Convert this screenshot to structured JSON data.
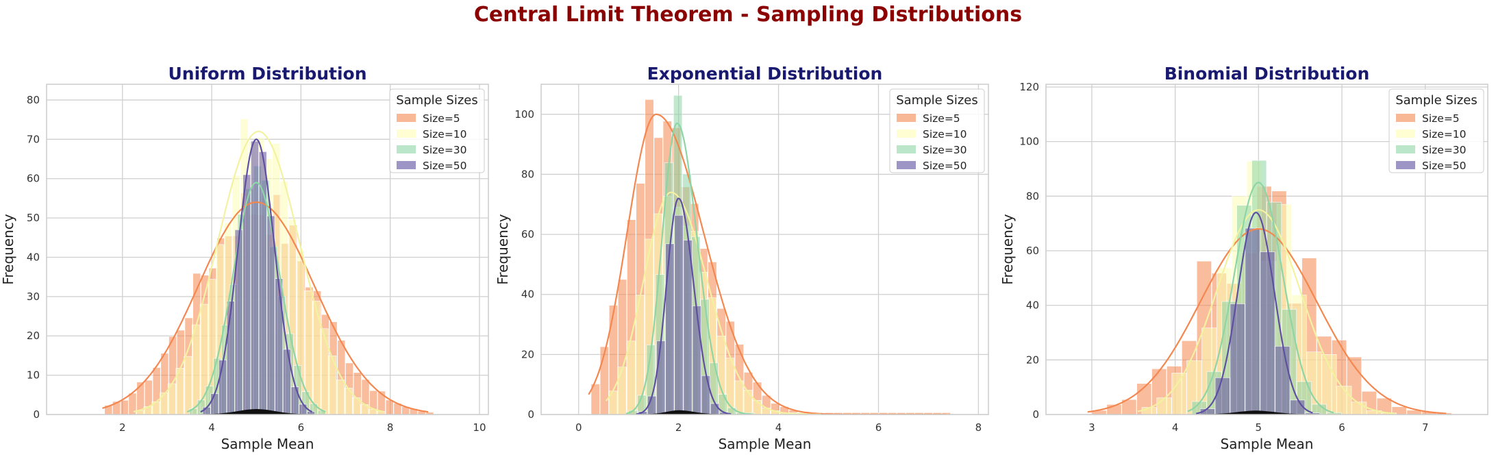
{
  "figure": {
    "suptitle": "Central Limit Theorem - Sampling Distributions"
  },
  "colors": {
    "Size=5": "#f4874f",
    "Size=10": "#fdfdb4",
    "Size=30": "#8ed5a6",
    "Size=50": "#5e4fa2",
    "title": "#191970",
    "suptitle": "#8b0000",
    "grid": "#cccccc"
  },
  "chart_data": [
    {
      "type": "histogram",
      "title": "Uniform Distribution",
      "xlabel": "Sample Mean",
      "ylabel": "Frequency",
      "xlim": [
        0.3,
        10.2
      ],
      "ylim": [
        0,
        84
      ],
      "xticks": [
        2,
        4,
        6,
        8,
        10
      ],
      "yticks": [
        0,
        10,
        20,
        30,
        40,
        50,
        60,
        70,
        80
      ],
      "grid": true,
      "legend": {
        "title": "Sample Sizes",
        "position": "top-right",
        "entries": [
          "Size=5",
          "Size=10",
          "Size=30",
          "Size=50"
        ]
      },
      "series": [
        {
          "name": "Size=5",
          "mean": 5.0,
          "sd": 1.3,
          "peak": 54,
          "bins": [
            1.6,
            8.8
          ],
          "jitter": 0.14,
          "outline": true
        },
        {
          "name": "Size=10",
          "mean": 5.05,
          "sd": 0.92,
          "peak": 72,
          "bins": [
            2.3,
            7.8
          ],
          "jitter": 0.12
        },
        {
          "name": "Size=30",
          "mean": 5.0,
          "sd": 0.52,
          "peak": 59,
          "bins": [
            3.5,
            6.5
          ],
          "jitter": 0.1
        },
        {
          "name": "Size=50",
          "mean": 5.0,
          "sd": 0.41,
          "peak": 70,
          "bins": [
            3.8,
            6.2
          ],
          "jitter": 0.1
        }
      ]
    },
    {
      "type": "histogram",
      "title": "Exponential Distribution",
      "xlabel": "Sample Mean",
      "ylabel": "Frequency",
      "xlim": [
        -0.75,
        8.2
      ],
      "ylim": [
        0,
        110
      ],
      "xticks": [
        0,
        2,
        4,
        6,
        8
      ],
      "yticks": [
        0,
        20,
        40,
        60,
        80,
        100
      ],
      "grid": true,
      "legend": {
        "title": "Sample Sizes",
        "position": "top-right",
        "entries": [
          "Size=5",
          "Size=10",
          "Size=30",
          "Size=50"
        ]
      },
      "series": [
        {
          "name": "Size=5",
          "mode": 1.55,
          "sdl": 0.58,
          "sdr": 0.95,
          "peak": 100,
          "bins": [
            0.25,
            7.3
          ],
          "jitter": 0.14,
          "outline": true
        },
        {
          "name": "Size=10",
          "mode": 1.85,
          "sdl": 0.55,
          "sdr": 0.72,
          "peak": 74,
          "bins": [
            0.6,
            4.8
          ],
          "jitter": 0.12
        },
        {
          "name": "Size=30",
          "mode": 1.97,
          "sdl": 0.3,
          "sdr": 0.4,
          "peak": 97,
          "bins": [
            1.0,
            3.4
          ],
          "jitter": 0.1
        },
        {
          "name": "Size=50",
          "mode": 2.0,
          "sdl": 0.24,
          "sdr": 0.3,
          "peak": 72,
          "bins": [
            1.2,
            3.0
          ],
          "jitter": 0.1
        }
      ]
    },
    {
      "type": "histogram",
      "title": "Binomial Distribution",
      "xlabel": "Sample Mean",
      "ylabel": "Frequency",
      "xlim": [
        2.45,
        7.75
      ],
      "ylim": [
        0,
        121
      ],
      "xticks": [
        3,
        4,
        5,
        6,
        7
      ],
      "yticks": [
        0,
        20,
        40,
        60,
        80,
        100,
        120
      ],
      "grid": true,
      "legend": {
        "title": "Sample Sizes",
        "position": "top-right",
        "entries": [
          "Size=5",
          "Size=10",
          "Size=30",
          "Size=50"
        ]
      },
      "series": [
        {
          "name": "Size=5",
          "mean": 5.0,
          "sd": 0.7,
          "peak": 68,
          "bins": [
            3.0,
            7.2
          ],
          "jitter": 0.3,
          "outline": true
        },
        {
          "name": "Size=10",
          "mean": 5.0,
          "sd": 0.5,
          "peak": 75,
          "bins": [
            3.6,
            6.6
          ],
          "jitter": 0.25
        },
        {
          "name": "Size=30",
          "mean": 5.0,
          "sd": 0.29,
          "peak": 85,
          "bins": [
            4.2,
            5.85
          ],
          "jitter": 0.15
        },
        {
          "name": "Size=50",
          "mean": 4.97,
          "sd": 0.22,
          "peak": 74,
          "bins": [
            4.3,
            5.6
          ],
          "jitter": 0.12
        }
      ]
    }
  ]
}
